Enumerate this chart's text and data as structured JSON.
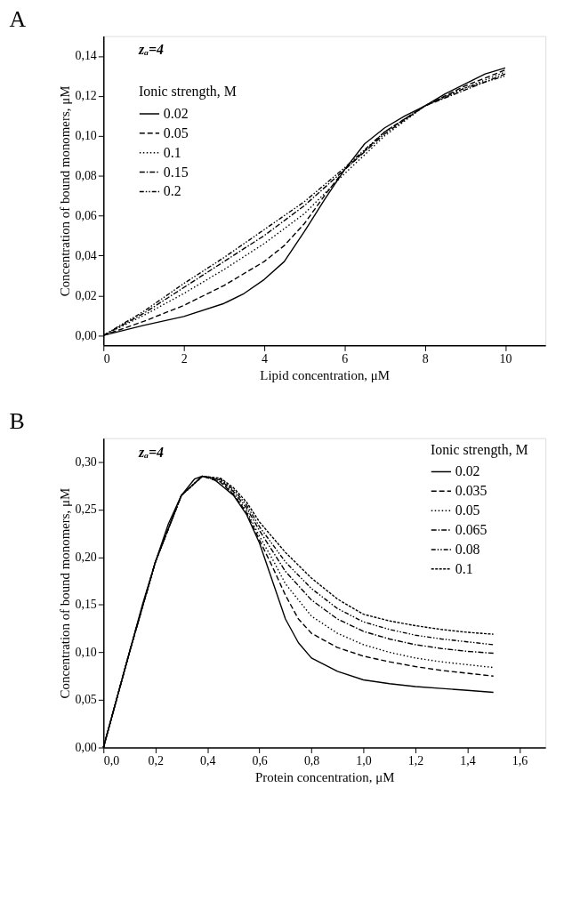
{
  "chart_data": [
    {
      "type": "line",
      "title": "A",
      "xlabel": "Lipid concentration, μM",
      "ylabel": "Concentration of bound monomers, μM",
      "legend_title": "Ionic strength, M",
      "annotations": [
        "zₐ=4"
      ],
      "legend": "top left",
      "grid": false,
      "xlim": [
        0,
        11
      ],
      "ylim": [
        -0.005,
        0.15
      ],
      "xticks": [
        0,
        2,
        4,
        6,
        8,
        10
      ],
      "yticks": [
        {
          "value": 0,
          "label": "0,00"
        },
        {
          "value": 0.02,
          "label": "0,02"
        },
        {
          "value": 0.04,
          "label": "0,04"
        },
        {
          "value": 0.06,
          "label": "0,06"
        },
        {
          "value": 0.08,
          "label": "0,08"
        },
        {
          "value": 0.1,
          "label": "0,10"
        },
        {
          "value": 0.12,
          "label": "0,12"
        },
        {
          "value": 0.14,
          "label": "0,14"
        }
      ],
      "series": [
        {
          "name": "0.02",
          "color": "#000000",
          "line_style": "solid",
          "x": [
            0,
            1,
            2,
            3,
            3.5,
            4,
            4.5,
            5,
            5.5,
            6,
            6.5,
            7,
            7.5,
            8,
            8.5,
            9,
            9.5,
            10
          ],
          "values": [
            0,
            0.005,
            0.0095,
            0.016,
            0.021,
            0.028,
            0.037,
            0.052,
            0.068,
            0.083,
            0.096,
            0.104,
            0.11,
            0.115,
            0.121,
            0.126,
            0.131,
            0.134
          ]
        },
        {
          "name": "0.05",
          "color": "#000000",
          "line_style": "dashed",
          "x": [
            0,
            1,
            2,
            3,
            4,
            4.5,
            5,
            5.5,
            6,
            7,
            8,
            9,
            10
          ],
          "values": [
            0,
            0.007,
            0.015,
            0.025,
            0.037,
            0.045,
            0.056,
            0.07,
            0.083,
            0.102,
            0.115,
            0.125,
            0.133
          ]
        },
        {
          "name": "0.1",
          "color": "#000000",
          "line_style": "dotted",
          "x": [
            0,
            1,
            2,
            3,
            4,
            5,
            6,
            7,
            8,
            9,
            10
          ],
          "values": [
            0,
            0.01,
            0.021,
            0.033,
            0.046,
            0.061,
            0.081,
            0.1,
            0.115,
            0.124,
            0.132
          ]
        },
        {
          "name": "0.15",
          "color": "#000000",
          "line_style": "dashdot",
          "x": [
            0,
            1,
            2,
            3,
            4,
            5,
            6,
            7,
            8,
            9,
            10
          ],
          "values": [
            0,
            0.011,
            0.024,
            0.037,
            0.05,
            0.065,
            0.083,
            0.101,
            0.115,
            0.123,
            0.131
          ]
        },
        {
          "name": "0.2",
          "color": "#000000",
          "line_style": "dashdotdot",
          "x": [
            0,
            1,
            2,
            3,
            4,
            5,
            6,
            7,
            8,
            9,
            10
          ],
          "values": [
            0,
            0.012,
            0.026,
            0.039,
            0.053,
            0.067,
            0.084,
            0.102,
            0.115,
            0.124,
            0.13
          ]
        }
      ]
    },
    {
      "type": "line",
      "title": "B",
      "xlabel": "Protein concentration, μM",
      "ylabel": "Concentration of bound monomers, μM",
      "legend_title": "Ionic strength, M",
      "annotations": [
        "zₐ=4"
      ],
      "legend": "top right",
      "grid": false,
      "xlim": [
        0,
        1.7
      ],
      "ylim": [
        0,
        0.325
      ],
      "xticks": [
        {
          "value": 0,
          "label": "0,0"
        },
        {
          "value": 0.2,
          "label": "0,2"
        },
        {
          "value": 0.4,
          "label": "0,4"
        },
        {
          "value": 0.6,
          "label": "0,6"
        },
        {
          "value": 0.8,
          "label": "0,8"
        },
        {
          "value": 1,
          "label": "1,0"
        },
        {
          "value": 1.2,
          "label": "1,2"
        },
        {
          "value": 1.4,
          "label": "1,4"
        },
        {
          "value": 1.6,
          "label": "1,6"
        }
      ],
      "yticks": [
        {
          "value": 0,
          "label": "0,00"
        },
        {
          "value": 0.05,
          "label": "0,05"
        },
        {
          "value": 0.1,
          "label": "0,10"
        },
        {
          "value": 0.15,
          "label": "0,15"
        },
        {
          "value": 0.2,
          "label": "0,20"
        },
        {
          "value": 0.25,
          "label": "0,25"
        },
        {
          "value": 0.3,
          "label": "0,30"
        }
      ],
      "series": [
        {
          "name": "0.02",
          "color": "#000000",
          "line_style": "solid",
          "x": [
            0,
            0.05,
            0.1,
            0.15,
            0.2,
            0.25,
            0.3,
            0.35,
            0.38,
            0.42,
            0.5,
            0.55,
            0.6,
            0.65,
            0.7,
            0.75,
            0.8,
            0.9,
            1.0,
            1.1,
            1.2,
            1.3,
            1.4,
            1.5
          ],
          "values": [
            0,
            0.05,
            0.1,
            0.15,
            0.195,
            0.235,
            0.265,
            0.282,
            0.285,
            0.283,
            0.265,
            0.245,
            0.215,
            0.175,
            0.135,
            0.11,
            0.094,
            0.08,
            0.071,
            0.067,
            0.064,
            0.062,
            0.06,
            0.058
          ]
        },
        {
          "name": "0.035",
          "color": "#000000",
          "line_style": "dashed",
          "x": [
            0,
            0.1,
            0.2,
            0.3,
            0.38,
            0.45,
            0.5,
            0.55,
            0.6,
            0.65,
            0.7,
            0.75,
            0.8,
            0.9,
            1.0,
            1.1,
            1.2,
            1.3,
            1.4,
            1.5
          ],
          "values": [
            0,
            0.1,
            0.195,
            0.265,
            0.285,
            0.279,
            0.266,
            0.247,
            0.218,
            0.19,
            0.16,
            0.135,
            0.12,
            0.105,
            0.096,
            0.09,
            0.085,
            0.081,
            0.078,
            0.075
          ]
        },
        {
          "name": "0.05",
          "color": "#000000",
          "line_style": "dotted",
          "x": [
            0,
            0.1,
            0.2,
            0.3,
            0.38,
            0.45,
            0.5,
            0.55,
            0.6,
            0.65,
            0.7,
            0.8,
            0.9,
            1.0,
            1.1,
            1.2,
            1.3,
            1.4,
            1.5
          ],
          "values": [
            0,
            0.1,
            0.195,
            0.265,
            0.285,
            0.28,
            0.267,
            0.249,
            0.222,
            0.198,
            0.172,
            0.138,
            0.12,
            0.108,
            0.1,
            0.094,
            0.09,
            0.087,
            0.084
          ]
        },
        {
          "name": "0.065",
          "color": "#000000",
          "line_style": "dashdot",
          "x": [
            0,
            0.1,
            0.2,
            0.3,
            0.38,
            0.45,
            0.5,
            0.55,
            0.6,
            0.7,
            0.8,
            0.9,
            1.0,
            1.1,
            1.2,
            1.3,
            1.4,
            1.5
          ],
          "values": [
            0,
            0.1,
            0.195,
            0.265,
            0.285,
            0.281,
            0.269,
            0.252,
            0.228,
            0.185,
            0.155,
            0.135,
            0.122,
            0.114,
            0.108,
            0.104,
            0.101,
            0.099
          ]
        },
        {
          "name": "0.08",
          "color": "#000000",
          "line_style": "dashdotdot",
          "x": [
            0,
            0.1,
            0.2,
            0.3,
            0.38,
            0.45,
            0.5,
            0.55,
            0.6,
            0.7,
            0.8,
            0.9,
            1.0,
            1.1,
            1.2,
            1.3,
            1.4,
            1.5
          ],
          "values": [
            0,
            0.1,
            0.195,
            0.265,
            0.285,
            0.282,
            0.271,
            0.255,
            0.232,
            0.195,
            0.167,
            0.146,
            0.132,
            0.124,
            0.118,
            0.114,
            0.111,
            0.108
          ]
        },
        {
          "name": "0.1",
          "color": "#000000",
          "line_style": "shortdash",
          "x": [
            0,
            0.1,
            0.2,
            0.3,
            0.38,
            0.45,
            0.5,
            0.55,
            0.6,
            0.7,
            0.8,
            0.9,
            1.0,
            1.1,
            1.2,
            1.3,
            1.4,
            1.5
          ],
          "values": [
            0,
            0.1,
            0.195,
            0.265,
            0.285,
            0.283,
            0.273,
            0.258,
            0.237,
            0.205,
            0.178,
            0.156,
            0.14,
            0.133,
            0.128,
            0.124,
            0.121,
            0.119
          ]
        }
      ]
    }
  ]
}
